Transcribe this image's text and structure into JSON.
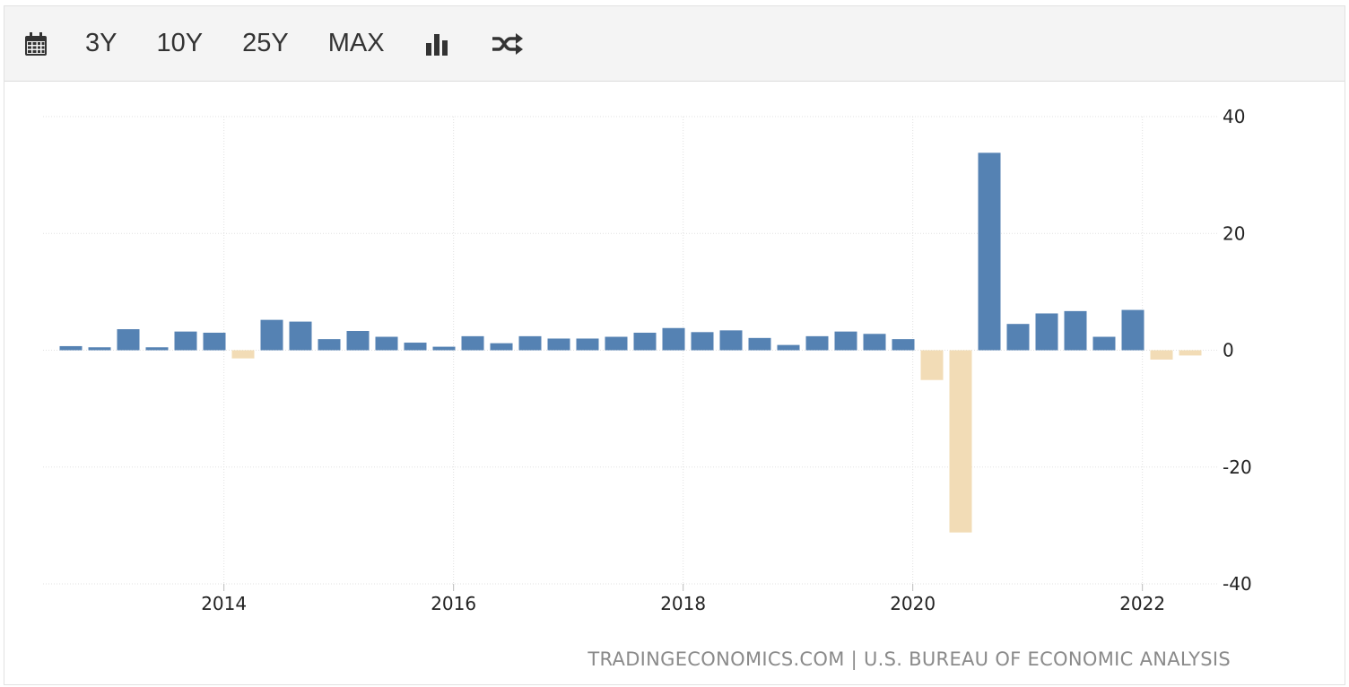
{
  "toolbar": {
    "calendar_icon": "calendar-icon",
    "ranges": [
      "3Y",
      "10Y",
      "25Y",
      "MAX"
    ],
    "chart_type_icon": "bar-chart-icon",
    "shuffle_icon": "shuffle-icon"
  },
  "source_text": "TRADINGECONOMICS.COM | U.S. BUREAU OF ECONOMIC ANALYSIS",
  "colors": {
    "positive": "#5582b3",
    "negative": "#f2dcb6",
    "grid": "#e2e2e2"
  },
  "chart_data": {
    "type": "bar",
    "x": [
      "2012-09",
      "2012-12",
      "2013-03",
      "2013-06",
      "2013-09",
      "2013-12",
      "2014-03",
      "2014-06",
      "2014-09",
      "2014-12",
      "2015-03",
      "2015-06",
      "2015-09",
      "2015-12",
      "2016-03",
      "2016-06",
      "2016-09",
      "2016-12",
      "2017-03",
      "2017-06",
      "2017-09",
      "2017-12",
      "2018-03",
      "2018-06",
      "2018-09",
      "2018-12",
      "2019-03",
      "2019-06",
      "2019-09",
      "2019-12",
      "2020-03",
      "2020-06",
      "2020-09",
      "2020-12",
      "2021-03",
      "2021-06",
      "2021-09",
      "2021-12",
      "2022-03",
      "2022-06"
    ],
    "values": [
      0.7,
      0.5,
      3.6,
      0.5,
      3.2,
      3.0,
      -1.4,
      5.2,
      4.9,
      1.9,
      3.3,
      2.3,
      1.3,
      0.6,
      2.4,
      1.2,
      2.4,
      2.0,
      2.0,
      2.3,
      3.0,
      3.8,
      3.1,
      3.4,
      2.1,
      0.9,
      2.4,
      3.2,
      2.8,
      1.9,
      -5.1,
      -31.2,
      33.8,
      4.5,
      6.3,
      6.7,
      2.3,
      6.9,
      -1.6,
      -0.9
    ],
    "xticks": [
      "2014",
      "2016",
      "2018",
      "2020",
      "2022"
    ],
    "yticks": [
      40,
      20,
      0,
      -20,
      -40
    ],
    "ylim": [
      -40,
      40
    ],
    "grid": true,
    "title": "",
    "xlabel": "",
    "ylabel": ""
  }
}
